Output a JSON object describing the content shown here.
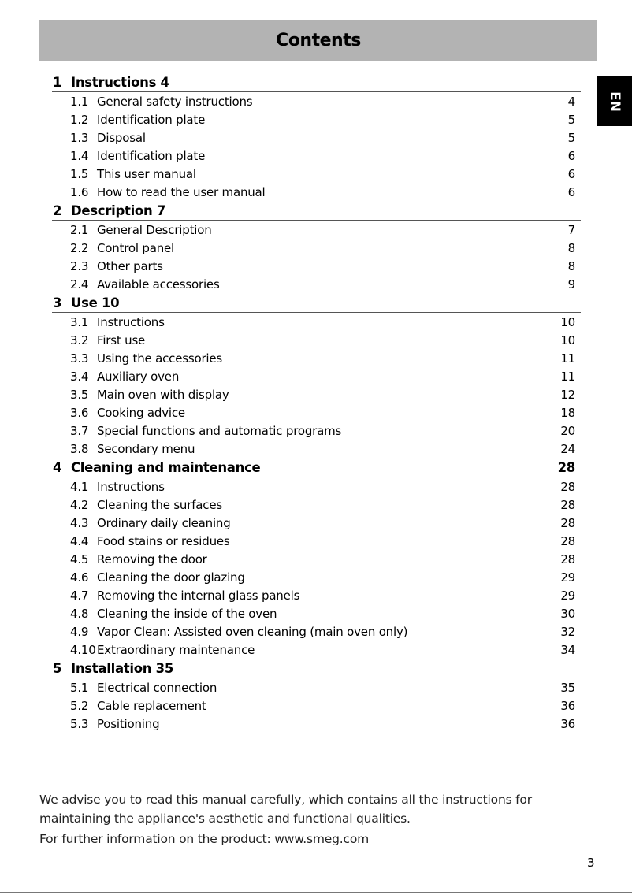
{
  "header": {
    "title": "Contents"
  },
  "language_tab": "EN",
  "sections": [
    {
      "num": "1",
      "title": "Instructions 4",
      "page": "",
      "items": [
        {
          "num": "1.1",
          "title": "General safety instructions",
          "page": "4"
        },
        {
          "num": "1.2",
          "title": "Identification plate",
          "page": "5"
        },
        {
          "num": "1.3",
          "title": "Disposal",
          "page": "5"
        },
        {
          "num": "1.4",
          "title": "Identification plate",
          "page": "6"
        },
        {
          "num": "1.5",
          "title": "This user manual",
          "page": "6"
        },
        {
          "num": "1.6",
          "title": "How to read the user manual",
          "page": "6"
        }
      ]
    },
    {
      "num": "2",
      "title": "Description 7",
      "page": "",
      "items": [
        {
          "num": "2.1",
          "title": "General Description",
          "page": "7"
        },
        {
          "num": "2.2",
          "title": "Control panel",
          "page": "8"
        },
        {
          "num": "2.3",
          "title": "Other parts",
          "page": "8"
        },
        {
          "num": "2.4",
          "title": "Available accessories",
          "page": "9"
        }
      ]
    },
    {
      "num": "3",
      "title": "Use 10",
      "page": "",
      "items": [
        {
          "num": "3.1",
          "title": "Instructions",
          "page": "10"
        },
        {
          "num": "3.2",
          "title": "First use",
          "page": "10"
        },
        {
          "num": "3.3",
          "title": "Using the accessories",
          "page": "11"
        },
        {
          "num": "3.4",
          "title": "Auxiliary oven",
          "page": "11"
        },
        {
          "num": "3.5",
          "title": "Main oven with display",
          "page": "12"
        },
        {
          "num": "3.6",
          "title": "Cooking advice",
          "page": "18"
        },
        {
          "num": "3.7",
          "title": "Special functions and automatic programs",
          "page": "20"
        },
        {
          "num": "3.8",
          "title": "Secondary menu",
          "page": "24"
        }
      ]
    },
    {
      "num": "4",
      "title": "Cleaning and maintenance",
      "page": "28",
      "items": [
        {
          "num": "4.1",
          "title": "Instructions",
          "page": "28"
        },
        {
          "num": "4.2",
          "title": "Cleaning the surfaces",
          "page": "28"
        },
        {
          "num": "4.3",
          "title": "Ordinary daily cleaning",
          "page": "28"
        },
        {
          "num": "4.4",
          "title": "Food stains or residues",
          "page": "28"
        },
        {
          "num": "4.5",
          "title": "Removing the door",
          "page": "28"
        },
        {
          "num": "4.6",
          "title": "Cleaning the door glazing",
          "page": "29"
        },
        {
          "num": "4.7",
          "title": "Removing the internal glass panels",
          "page": "29"
        },
        {
          "num": "4.8",
          "title": "Cleaning the inside of the oven",
          "page": "30"
        },
        {
          "num": "4.9",
          "title": "Vapor Clean: Assisted oven cleaning (main oven only)",
          "page": "32"
        },
        {
          "num": "4.10",
          "title": "Extraordinary maintenance",
          "page": "34"
        }
      ]
    },
    {
      "num": "5",
      "title": "Installation 35",
      "page": "",
      "items": [
        {
          "num": "5.1",
          "title": "Electrical connection",
          "page": "35"
        },
        {
          "num": "5.2",
          "title": "Cable replacement",
          "page": "36"
        },
        {
          "num": "5.3",
          "title": "Positioning",
          "page": "36"
        }
      ]
    }
  ],
  "footer": {
    "line1": "We advise you to read this manual carefully, which contains all the instructions for",
    "line2": "maintaining the appliance's aesthetic and functional qualities.",
    "line3": "For further information on the product: www.smeg.com"
  },
  "page_number": "3"
}
